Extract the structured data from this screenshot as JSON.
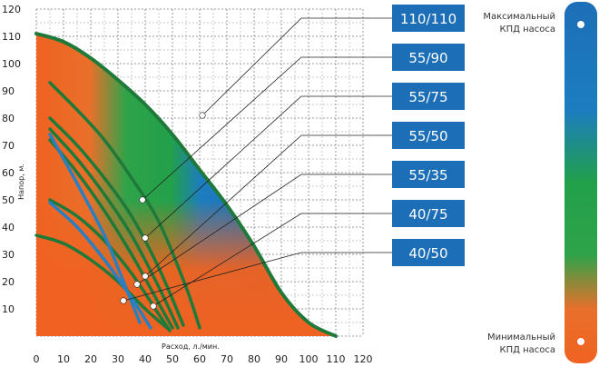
{
  "chart_data": {
    "type": "line",
    "xlabel": "Расход, л./мин.",
    "ylabel": "Напор, м.",
    "xlim": [
      0,
      120
    ],
    "ylim": [
      0,
      120
    ],
    "x_ticks": [
      "0",
      "10",
      "20",
      "30",
      "40",
      "50",
      "60",
      "70",
      "80",
      "90",
      "100",
      "110",
      "120"
    ],
    "y_ticks": [
      "10",
      "20",
      "30",
      "40",
      "50",
      "60",
      "70",
      "80",
      "90",
      "100",
      "110",
      "120"
    ],
    "grid": true,
    "series": [
      {
        "name": "110/110",
        "color": "#1f7a3a",
        "x": [
          0,
          10,
          20,
          30,
          40,
          50,
          60,
          70,
          80,
          90,
          100,
          110
        ],
        "y": [
          111,
          108,
          102,
          94,
          85,
          74,
          61,
          48,
          33,
          16,
          5,
          0
        ],
        "marker": {
          "x": 61,
          "y": 81
        }
      },
      {
        "name": "55/90",
        "color": "#1f7a3a",
        "x": [
          5,
          15,
          25,
          35,
          45,
          55,
          60
        ],
        "y": [
          93,
          83,
          72,
          58,
          42,
          18,
          3
        ],
        "marker": {
          "x": 39,
          "y": 50
        }
      },
      {
        "name": "55/75",
        "color": "#1f7a3a",
        "x": [
          5,
          15,
          25,
          35,
          45,
          54
        ],
        "y": [
          80,
          70,
          58,
          44,
          25,
          4
        ],
        "marker": {
          "x": 40,
          "y": 36
        }
      },
      {
        "name": "55/50",
        "color": "#1f7a3a",
        "x": [
          5,
          15,
          25,
          35,
          45,
          52
        ],
        "y": [
          76,
          65,
          52,
          37,
          18,
          3
        ],
        "marker": {
          "x": 40,
          "y": 22
        }
      },
      {
        "name": "55/35",
        "color": "#1f7a3a",
        "x": [
          5,
          15,
          25,
          35,
          45,
          50
        ],
        "y": [
          72,
          60,
          46,
          30,
          12,
          3
        ],
        "marker": {
          "x": 37,
          "y": 19
        }
      },
      {
        "name": "40/75",
        "color": "#1f7a3a",
        "x": [
          5,
          15,
          25,
          35,
          45,
          49
        ],
        "y": [
          50,
          44,
          35,
          23,
          8,
          2
        ],
        "marker": {
          "x": 43,
          "y": 11
        }
      },
      {
        "name": "40/50",
        "color": "#2a7fc1",
        "x": [
          5,
          15,
          25,
          32,
          38
        ],
        "y": [
          74,
          56,
          37,
          20,
          5
        ],
        "marker": {
          "x": 32,
          "y": 13
        }
      },
      {
        "name": "",
        "color": "#1f7a3a",
        "x": [
          0,
          10,
          20,
          30,
          40,
          48
        ],
        "y": [
          37,
          34,
          28,
          20,
          10,
          3
        ]
      },
      {
        "name": "",
        "color": "#2a7fc1",
        "x": [
          5,
          15,
          25,
          35,
          42
        ],
        "y": [
          49,
          40,
          28,
          14,
          3
        ]
      }
    ]
  },
  "legend_labels": [
    "110/110",
    "55/90",
    "55/75",
    "55/50",
    "55/35",
    "40/75",
    "40/50"
  ],
  "scale": {
    "max_label_1": "Максимальный",
    "max_label_2": "КПД насоса",
    "min_label_1": "Минимальный",
    "min_label_2": "КПД насоса"
  },
  "colors": {
    "label_box": "#1c6fb7",
    "high_eff": "#1c6fb7",
    "mid_eff": "#22a04a",
    "low_eff": "#f06221"
  }
}
